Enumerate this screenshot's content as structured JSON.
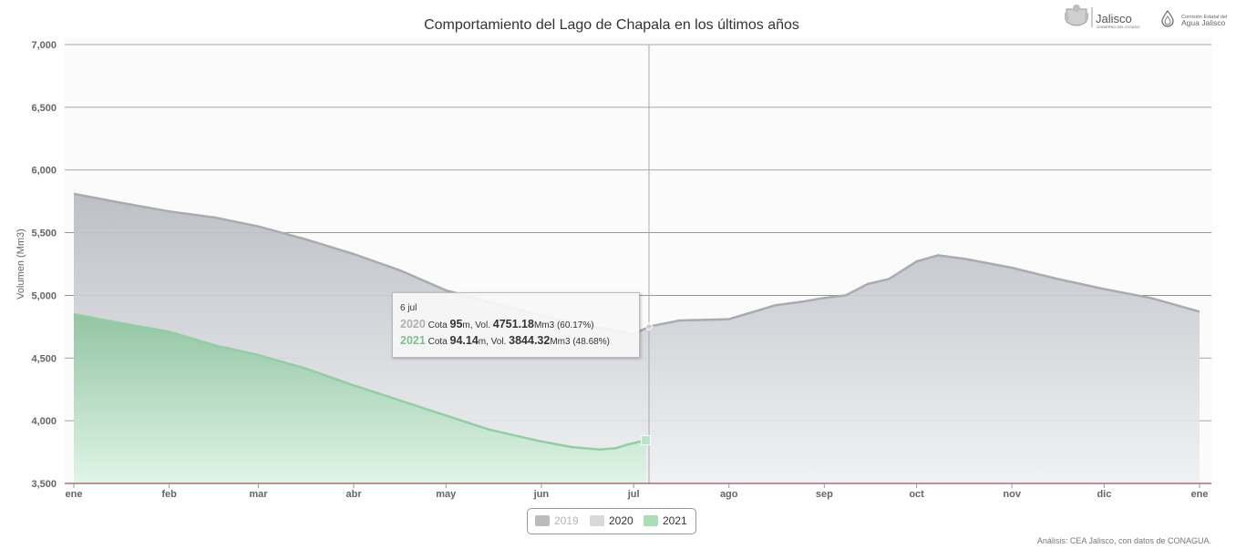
{
  "chart_data": {
    "type": "area",
    "title": "Comportamiento del Lago de Chapala en los últimos años",
    "ylabel": "Volumen (Mm3)",
    "ylim": [
      3500,
      7000
    ],
    "yticks": [
      "7,000",
      "6,500",
      "6,000",
      "5,500",
      "5,000",
      "4,500",
      "4,000",
      "3,500"
    ],
    "ytick_values": [
      7000,
      6500,
      6000,
      5500,
      5000,
      4500,
      4000,
      3500
    ],
    "xticks": [
      "ene",
      "feb",
      "mar",
      "abr",
      "may",
      "jun",
      "jul",
      "ago",
      "sep",
      "oct",
      "nov",
      "dic",
      "ene"
    ],
    "grid": true,
    "series": [
      {
        "name": "2019",
        "visible": false,
        "color": "#cccccc",
        "values": []
      },
      {
        "name": "2020",
        "visible": true,
        "color": "#a9abb0",
        "x_day": [
          0,
          15,
          31,
          46,
          60,
          75,
          91,
          106,
          121,
          136,
          152,
          167,
          182,
          187,
          197,
          213,
          228,
          237,
          244,
          251,
          258,
          265,
          274,
          281,
          290,
          305,
          320,
          335,
          350,
          366
        ],
        "values": [
          5810,
          5740,
          5670,
          5620,
          5550,
          5450,
          5330,
          5200,
          5040,
          4940,
          4840,
          4760,
          4690,
          4751,
          4800,
          4810,
          4920,
          4950,
          4980,
          5000,
          5090,
          5130,
          5270,
          5320,
          5290,
          5220,
          5130,
          5050,
          4980,
          4870
        ]
      },
      {
        "name": "2021",
        "visible": true,
        "color": "#8fcfa0",
        "x_day": [
          0,
          15,
          31,
          46,
          59,
          75,
          90,
          105,
          120,
          135,
          151,
          162,
          171,
          176,
          180,
          186
        ],
        "values": [
          4850,
          4780,
          4710,
          4600,
          4530,
          4420,
          4290,
          4170,
          4050,
          3930,
          3840,
          3790,
          3770,
          3780,
          3810,
          3844.32
        ]
      }
    ],
    "crosshair_day": 187,
    "tooltip": {
      "date": "6 jul",
      "rows": [
        {
          "year": "2020",
          "cota_label": "Cota",
          "cota": "95",
          "cota_unit": "m, Vol.",
          "vol": "4751.18",
          "vol_unit": "Mm3",
          "pct": "(60.17%)",
          "color": "#b0b0b0"
        },
        {
          "year": "2021",
          "cota_label": "Cota",
          "cota": "94.14",
          "cota_unit": "m, Vol.",
          "vol": "3844.32",
          "vol_unit": "Mm3",
          "pct": "(48.68%)",
          "color": "#7fbf8e"
        }
      ]
    },
    "credit": "Análisis: CEA Jalisco, con datos de CONAGUA."
  },
  "logos": {
    "jalisco": "Jalisco",
    "jalisco_sub": "GOBIERNO DEL ESTADO",
    "cea_line1": "Comisión Estatal del",
    "cea_line2": "Agua Jalisco"
  },
  "legend": [
    {
      "label": "2019",
      "color": "#bbbbbb",
      "muted": true
    },
    {
      "label": "2020",
      "color": "#d7d9dd",
      "muted": false
    },
    {
      "label": "2021",
      "color": "#a8e0b4",
      "muted": false
    }
  ]
}
